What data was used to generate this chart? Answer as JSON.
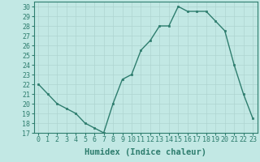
{
  "x": [
    0,
    1,
    2,
    3,
    4,
    5,
    6,
    7,
    8,
    9,
    10,
    11,
    12,
    13,
    14,
    15,
    16,
    17,
    18,
    19,
    20,
    21,
    22,
    23
  ],
  "y": [
    22,
    21,
    20,
    19.5,
    19,
    18,
    17.5,
    17,
    20,
    22.5,
    23,
    25.5,
    26.5,
    28,
    28,
    30,
    29.5,
    29.5,
    29.5,
    28.5,
    27.5,
    24,
    21,
    18.5
  ],
  "line_color": "#2e7d6e",
  "marker_color": "#2e7d6e",
  "bg_color": "#c2e8e4",
  "grid_color": "#aed4d0",
  "xlabel": "Humidex (Indice chaleur)",
  "xlim": [
    -0.5,
    23.5
  ],
  "ylim": [
    17,
    30.5
  ],
  "yticks": [
    17,
    18,
    19,
    20,
    21,
    22,
    23,
    24,
    25,
    26,
    27,
    28,
    29,
    30
  ],
  "xticks": [
    0,
    1,
    2,
    3,
    4,
    5,
    6,
    7,
    8,
    9,
    10,
    11,
    12,
    13,
    14,
    15,
    16,
    17,
    18,
    19,
    20,
    21,
    22,
    23
  ],
  "xlabel_fontsize": 7.5,
  "tick_fontsize": 6,
  "linewidth": 1.0,
  "markersize": 2.0
}
